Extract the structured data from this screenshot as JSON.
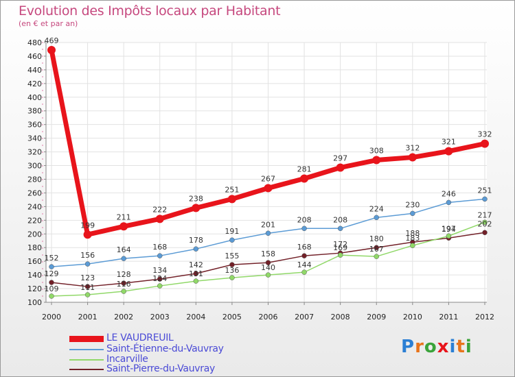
{
  "title": "Evolution des Impôts locaux par Habitant",
  "subtitle": "(en € et par an)",
  "brand": "Proxiti",
  "chart_data": {
    "type": "line",
    "title": "Evolution des Impôts locaux par Habitant",
    "ylabel": "(en € et par an)",
    "x": [
      "2000",
      "2001",
      "2002",
      "2003",
      "2004",
      "2005",
      "2006",
      "2007",
      "2008",
      "2009",
      "2010",
      "2011",
      "2012"
    ],
    "ylim": [
      100,
      480
    ],
    "yticks": [
      100,
      120,
      140,
      160,
      180,
      200,
      220,
      240,
      260,
      280,
      300,
      320,
      340,
      360,
      380,
      400,
      420,
      440,
      460,
      480
    ],
    "series": [
      {
        "name": "LE VAUDREUIL",
        "color": "#e8141b",
        "values": [
          469,
          199,
          211,
          222,
          238,
          251,
          267,
          281,
          297,
          308,
          312,
          321,
          332
        ]
      },
      {
        "name": "Saint-Étienne-du-Vauvray",
        "color": "#5b9bd5",
        "values": [
          152,
          156,
          164,
          168,
          178,
          191,
          201,
          208,
          208,
          224,
          230,
          246,
          251
        ]
      },
      {
        "name": "Incarville",
        "color": "#90d868",
        "values": [
          109,
          111,
          116,
          124,
          131,
          136,
          140,
          144,
          169,
          167,
          183,
          197,
          217
        ]
      },
      {
        "name": "Saint-Pierre-du-Vauvray",
        "color": "#722028",
        "values": [
          129,
          123,
          128,
          134,
          142,
          155,
          158,
          168,
          172,
          180,
          188,
          194,
          202
        ]
      }
    ]
  }
}
